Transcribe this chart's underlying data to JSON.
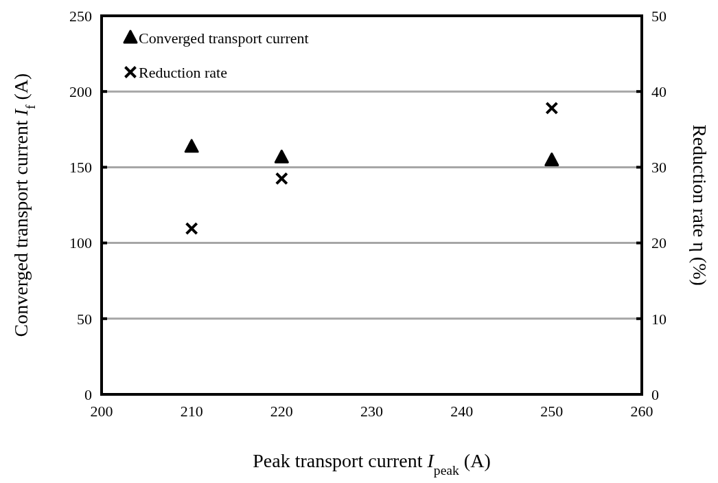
{
  "chart_data": {
    "type": "scatter",
    "xlabel": "Peak transport current I$_{peak}$ (A)",
    "ylabel": "Converged transport current I$_{f}$ (A)",
    "y2label": "Reduction rate η (%)",
    "x": [
      210,
      220,
      250
    ],
    "series": [
      {
        "name": "Converged transport current",
        "color": "#000000",
        "marker": "triangle",
        "values": [
          163.4,
          156.4,
          154.5
        ]
      },
      {
        "name": "Reduction rate",
        "color": "#000000",
        "marker": "cross",
        "axis": "y2",
        "values": [
          21.9,
          28.5,
          37.8
        ]
      }
    ],
    "xlim": [
      200,
      260
    ],
    "xticks": [
      200,
      210,
      220,
      230,
      240,
      250,
      260
    ],
    "ylim": [
      0,
      250
    ],
    "yticks": [
      0,
      50,
      100,
      150,
      200,
      250
    ],
    "y2lim": [
      0,
      50
    ],
    "y2ticks": [
      0,
      10,
      20,
      30,
      40,
      50
    ],
    "grid": "y",
    "legend": "top left"
  }
}
